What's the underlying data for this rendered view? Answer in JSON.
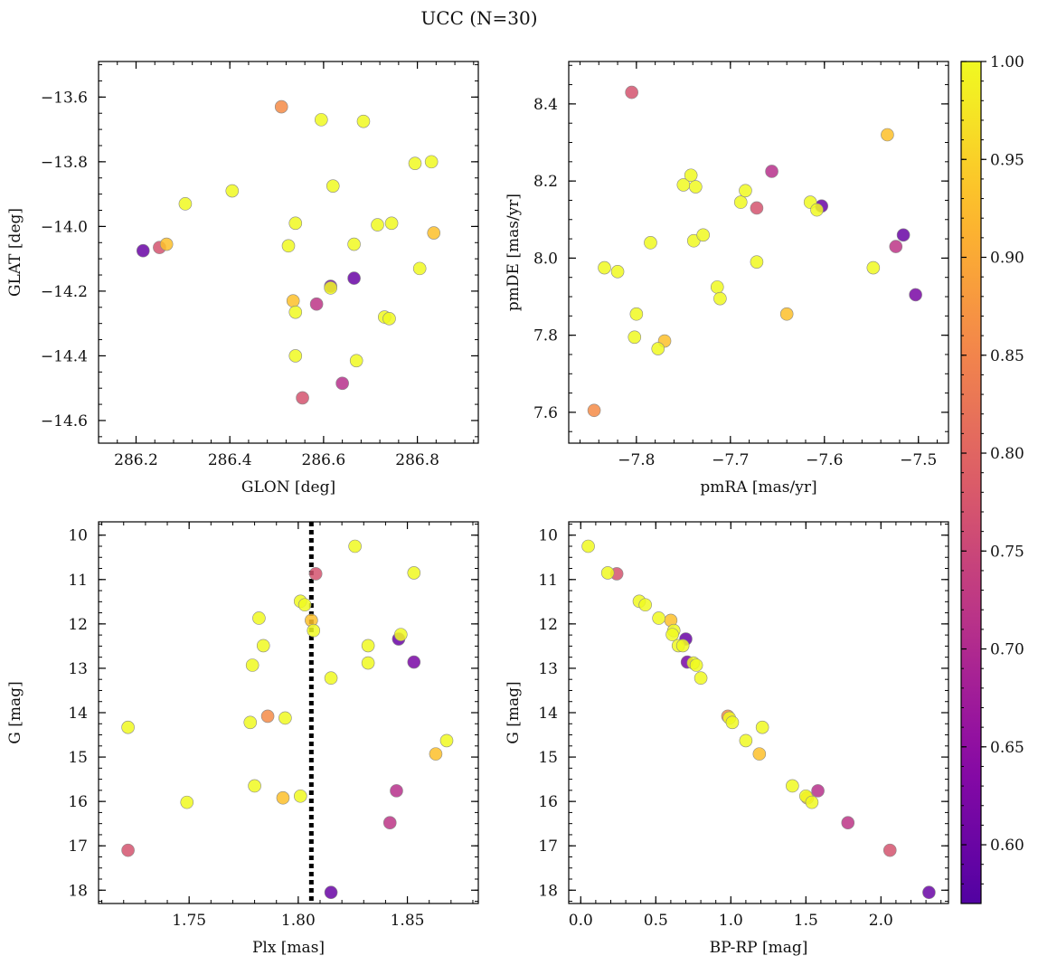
{
  "title": "UCC (N=30)",
  "colorbar": {
    "colormap": "plasma",
    "range": [
      0.57,
      1.0
    ],
    "ticks": [
      "0.60",
      "0.65",
      "0.70",
      "0.75",
      "0.80",
      "0.85",
      "0.90",
      "0.95",
      "1.00"
    ]
  },
  "chart_data": [
    {
      "type": "scatter",
      "xlabel": "GLON [deg]",
      "ylabel": "GLAT [deg]",
      "xlim": [
        286.12,
        286.93
      ],
      "ylim": [
        -14.67,
        -13.49
      ],
      "y_inverted": false,
      "xticks": [
        "286.2",
        "286.4",
        "286.6",
        "286.8"
      ],
      "yticks": [
        "−13.6",
        "−13.8",
        "−14.0",
        "−14.2",
        "−14.4",
        "−14.6"
      ],
      "points": [
        {
          "x": 286.215,
          "y": -14.075,
          "c": 0.6
        },
        {
          "x": 286.25,
          "y": -14.065,
          "c": 0.77
        },
        {
          "x": 286.265,
          "y": -14.055,
          "c": 0.93
        },
        {
          "x": 286.305,
          "y": -13.93,
          "c": 1.0
        },
        {
          "x": 286.405,
          "y": -13.89,
          "c": 1.0
        },
        {
          "x": 286.51,
          "y": -13.63,
          "c": 0.86
        },
        {
          "x": 286.525,
          "y": -14.06,
          "c": 1.0
        },
        {
          "x": 286.54,
          "y": -13.99,
          "c": 1.0
        },
        {
          "x": 286.535,
          "y": -14.23,
          "c": 0.93
        },
        {
          "x": 286.54,
          "y": -14.265,
          "c": 1.0
        },
        {
          "x": 286.54,
          "y": -14.4,
          "c": 1.0
        },
        {
          "x": 286.555,
          "y": -14.53,
          "c": 0.77
        },
        {
          "x": 286.585,
          "y": -14.24,
          "c": 0.72
        },
        {
          "x": 286.595,
          "y": -13.67,
          "c": 1.0
        },
        {
          "x": 286.615,
          "y": -14.185,
          "c": 0.62
        },
        {
          "x": 286.615,
          "y": -14.19,
          "c": 1.0
        },
        {
          "x": 286.62,
          "y": -13.875,
          "c": 1.0
        },
        {
          "x": 286.64,
          "y": -14.485,
          "c": 0.71
        },
        {
          "x": 286.665,
          "y": -14.055,
          "c": 1.0
        },
        {
          "x": 286.665,
          "y": -14.16,
          "c": 0.6
        },
        {
          "x": 286.67,
          "y": -14.415,
          "c": 1.0
        },
        {
          "x": 286.685,
          "y": -13.675,
          "c": 1.0
        },
        {
          "x": 286.715,
          "y": -13.995,
          "c": 1.0
        },
        {
          "x": 286.73,
          "y": -14.28,
          "c": 1.0
        },
        {
          "x": 286.74,
          "y": -14.285,
          "c": 1.0
        },
        {
          "x": 286.745,
          "y": -13.99,
          "c": 1.0
        },
        {
          "x": 286.795,
          "y": -13.805,
          "c": 1.0
        },
        {
          "x": 286.805,
          "y": -14.13,
          "c": 1.0
        },
        {
          "x": 286.83,
          "y": -13.8,
          "c": 1.0
        },
        {
          "x": 286.835,
          "y": -14.02,
          "c": 0.93
        }
      ]
    },
    {
      "type": "scatter",
      "xlabel": "pmRA [mas/yr]",
      "ylabel": "pmDE [mas/yr]",
      "xlim": [
        -7.872,
        -7.468
      ],
      "ylim": [
        7.52,
        8.51
      ],
      "y_inverted": false,
      "xticks": [
        "−7.8",
        "−7.7",
        "−7.6",
        "−7.5"
      ],
      "yticks": [
        "7.6",
        "7.8",
        "8.0",
        "8.2",
        "8.4"
      ],
      "points": [
        {
          "x": -7.845,
          "y": 7.605,
          "c": 0.86
        },
        {
          "x": -7.805,
          "y": 8.43,
          "c": 0.77
        },
        {
          "x": -7.834,
          "y": 7.975,
          "c": 1.0
        },
        {
          "x": -7.82,
          "y": 7.965,
          "c": 1.0
        },
        {
          "x": -7.8,
          "y": 7.855,
          "c": 1.0
        },
        {
          "x": -7.802,
          "y": 7.795,
          "c": 1.0
        },
        {
          "x": -7.785,
          "y": 8.04,
          "c": 1.0
        },
        {
          "x": -7.777,
          "y": 7.765,
          "c": 1.0
        },
        {
          "x": -7.77,
          "y": 7.785,
          "c": 0.93
        },
        {
          "x": -7.75,
          "y": 8.19,
          "c": 1.0
        },
        {
          "x": -7.742,
          "y": 8.215,
          "c": 1.0
        },
        {
          "x": -7.737,
          "y": 8.185,
          "c": 1.0
        },
        {
          "x": -7.739,
          "y": 8.045,
          "c": 1.0
        },
        {
          "x": -7.729,
          "y": 8.06,
          "c": 1.0
        },
        {
          "x": -7.714,
          "y": 7.925,
          "c": 1.0
        },
        {
          "x": -7.711,
          "y": 7.895,
          "c": 1.0
        },
        {
          "x": -7.689,
          "y": 8.145,
          "c": 1.0
        },
        {
          "x": -7.684,
          "y": 8.175,
          "c": 1.0
        },
        {
          "x": -7.672,
          "y": 8.13,
          "c": 0.77
        },
        {
          "x": -7.672,
          "y": 7.99,
          "c": 1.0
        },
        {
          "x": -7.656,
          "y": 8.225,
          "c": 0.71
        },
        {
          "x": -7.64,
          "y": 7.855,
          "c": 0.93
        },
        {
          "x": -7.615,
          "y": 8.145,
          "c": 1.0
        },
        {
          "x": -7.603,
          "y": 8.135,
          "c": 0.6
        },
        {
          "x": -7.608,
          "y": 8.125,
          "c": 1.0
        },
        {
          "x": -7.548,
          "y": 7.975,
          "c": 1.0
        },
        {
          "x": -7.533,
          "y": 8.32,
          "c": 0.93
        },
        {
          "x": -7.524,
          "y": 8.03,
          "c": 0.72
        },
        {
          "x": -7.516,
          "y": 8.06,
          "c": 0.6
        },
        {
          "x": -7.503,
          "y": 7.905,
          "c": 0.62
        }
      ]
    },
    {
      "type": "scatter",
      "xlabel": "Plx [mas]",
      "ylabel": "G [mag]",
      "xlim": [
        1.7085,
        1.8825
      ],
      "ylim": [
        18.3,
        9.7
      ],
      "y_inverted": true,
      "xticks": [
        "1.75",
        "1.80",
        "1.85"
      ],
      "yticks": [
        "10",
        "11",
        "12",
        "13",
        "14",
        "15",
        "16",
        "17",
        "18"
      ],
      "vline": {
        "x": 1.806,
        "style": "dotted",
        "color": "#000000"
      },
      "points": [
        {
          "x": 1.722,
          "y": 14.33,
          "c": 1.0
        },
        {
          "x": 1.722,
          "y": 17.1,
          "c": 0.77
        },
        {
          "x": 1.749,
          "y": 16.02,
          "c": 1.0
        },
        {
          "x": 1.778,
          "y": 14.22,
          "c": 1.0
        },
        {
          "x": 1.779,
          "y": 12.93,
          "c": 1.0
        },
        {
          "x": 1.78,
          "y": 15.65,
          "c": 1.0
        },
        {
          "x": 1.782,
          "y": 11.87,
          "c": 1.0
        },
        {
          "x": 1.784,
          "y": 12.49,
          "c": 1.0
        },
        {
          "x": 1.786,
          "y": 14.08,
          "c": 0.86
        },
        {
          "x": 1.793,
          "y": 15.92,
          "c": 0.93
        },
        {
          "x": 1.794,
          "y": 14.12,
          "c": 1.0
        },
        {
          "x": 1.801,
          "y": 11.49,
          "c": 1.0
        },
        {
          "x": 1.801,
          "y": 15.88,
          "c": 1.0
        },
        {
          "x": 1.803,
          "y": 11.57,
          "c": 1.0
        },
        {
          "x": 1.806,
          "y": 11.92,
          "c": 0.93
        },
        {
          "x": 1.807,
          "y": 12.15,
          "c": 1.0
        },
        {
          "x": 1.808,
          "y": 10.87,
          "c": 0.77
        },
        {
          "x": 1.815,
          "y": 13.22,
          "c": 1.0
        },
        {
          "x": 1.815,
          "y": 18.05,
          "c": 0.6
        },
        {
          "x": 1.826,
          "y": 10.25,
          "c": 1.0
        },
        {
          "x": 1.832,
          "y": 12.49,
          "c": 1.0
        },
        {
          "x": 1.832,
          "y": 12.88,
          "c": 1.0
        },
        {
          "x": 1.842,
          "y": 16.48,
          "c": 0.72
        },
        {
          "x": 1.845,
          "y": 15.76,
          "c": 0.71
        },
        {
          "x": 1.846,
          "y": 12.34,
          "c": 0.6
        },
        {
          "x": 1.847,
          "y": 12.24,
          "c": 1.0
        },
        {
          "x": 1.853,
          "y": 10.85,
          "c": 1.0
        },
        {
          "x": 1.853,
          "y": 12.86,
          "c": 0.62
        },
        {
          "x": 1.863,
          "y": 14.93,
          "c": 0.93
        },
        {
          "x": 1.868,
          "y": 14.63,
          "c": 1.0
        }
      ]
    },
    {
      "type": "scatter",
      "xlabel": "BP-RP [mag]",
      "ylabel": "G [mag]",
      "xlim": [
        -0.08,
        2.45
      ],
      "ylim": [
        18.3,
        9.7
      ],
      "y_inverted": true,
      "xticks": [
        "0.0",
        "0.5",
        "1.0",
        "1.5",
        "2.0"
      ],
      "yticks": [
        "10",
        "11",
        "12",
        "13",
        "14",
        "15",
        "16",
        "17",
        "18"
      ],
      "points": [
        {
          "x": 0.05,
          "y": 10.25,
          "c": 1.0
        },
        {
          "x": 0.18,
          "y": 10.85,
          "c": 1.0
        },
        {
          "x": 0.24,
          "y": 10.87,
          "c": 0.77
        },
        {
          "x": 0.39,
          "y": 11.49,
          "c": 1.0
        },
        {
          "x": 0.43,
          "y": 11.57,
          "c": 1.0
        },
        {
          "x": 0.52,
          "y": 11.87,
          "c": 1.0
        },
        {
          "x": 0.6,
          "y": 11.92,
          "c": 0.93
        },
        {
          "x": 0.62,
          "y": 12.15,
          "c": 1.0
        },
        {
          "x": 0.61,
          "y": 12.24,
          "c": 1.0
        },
        {
          "x": 0.7,
          "y": 12.34,
          "c": 0.6
        },
        {
          "x": 0.65,
          "y": 12.49,
          "c": 1.0
        },
        {
          "x": 0.68,
          "y": 12.49,
          "c": 1.0
        },
        {
          "x": 0.71,
          "y": 12.86,
          "c": 0.62
        },
        {
          "x": 0.75,
          "y": 12.88,
          "c": 1.0
        },
        {
          "x": 0.77,
          "y": 12.93,
          "c": 1.0
        },
        {
          "x": 0.8,
          "y": 13.22,
          "c": 1.0
        },
        {
          "x": 0.98,
          "y": 14.08,
          "c": 0.86
        },
        {
          "x": 0.99,
          "y": 14.12,
          "c": 1.0
        },
        {
          "x": 1.01,
          "y": 14.22,
          "c": 1.0
        },
        {
          "x": 1.21,
          "y": 14.33,
          "c": 1.0
        },
        {
          "x": 1.1,
          "y": 14.63,
          "c": 1.0
        },
        {
          "x": 1.19,
          "y": 14.93,
          "c": 0.93
        },
        {
          "x": 1.41,
          "y": 15.65,
          "c": 1.0
        },
        {
          "x": 1.58,
          "y": 15.76,
          "c": 0.71
        },
        {
          "x": 1.5,
          "y": 15.88,
          "c": 1.0
        },
        {
          "x": 1.51,
          "y": 15.92,
          "c": 0.93
        },
        {
          "x": 1.54,
          "y": 16.02,
          "c": 1.0
        },
        {
          "x": 1.78,
          "y": 16.48,
          "c": 0.72
        },
        {
          "x": 2.06,
          "y": 17.1,
          "c": 0.77
        },
        {
          "x": 2.32,
          "y": 18.05,
          "c": 0.6
        }
      ]
    }
  ]
}
